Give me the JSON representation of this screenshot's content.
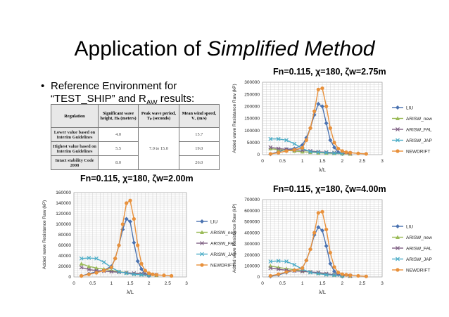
{
  "slide": {
    "title_prefix": "Application of ",
    "title_italic": "Simplified Method",
    "bullet_dot": "•",
    "bullet_text_main": "Reference Environment for “TEST_SHIP” and R",
    "bullet_text_sub": "AW",
    "bullet_text_end": " results:"
  },
  "params_table": {
    "headers": [
      "Regulation",
      "Significant wave height, Hₛ (meters)",
      "Peak wave period, Tₚ (seconds)",
      "Mean wind speed, Vᵥ (m/s)"
    ],
    "rows": [
      {
        "label": "Lower value based on Interim Guidelines",
        "height": "4.0",
        "wind": "15.7"
      },
      {
        "label": "Highest value based on Interim Guidelines",
        "height": "5.5",
        "wind": "19.0"
      },
      {
        "label": "Intact stability Code 2008",
        "height": "8.0",
        "wind": "26.0"
      }
    ],
    "period_range": "7.0 to 15.0"
  },
  "chart_data": [
    {
      "type": "line",
      "title": "Fn=0.115, χ=180, ζw=2.75m",
      "xlabel": "λ/L",
      "ylabel": "Added wave Resistance Raw (kP)",
      "xlim": [
        0,
        3
      ],
      "ylim": [
        0,
        300000
      ],
      "xticks": [
        "0",
        "0.5",
        "1",
        "1.5",
        "2",
        "2.5",
        "3"
      ],
      "yticks": [
        "0",
        "50000",
        "100000",
        "150000",
        "200000",
        "250000",
        "300000"
      ],
      "grid": true,
      "legend_position": "right",
      "series": [
        {
          "name": "LIU",
          "color": "#4a72b0",
          "marker": "diamond",
          "x": [
            0.2,
            0.4,
            0.6,
            0.8,
            1.0,
            1.1,
            1.2,
            1.3,
            1.4,
            1.5,
            1.6,
            1.7,
            1.8,
            1.9,
            2.0
          ],
          "y": [
            2000,
            12000,
            22000,
            25000,
            40000,
            70000,
            110000,
            165000,
            210000,
            200000,
            130000,
            60000,
            30000,
            10000,
            3000
          ]
        },
        {
          "name": "ARISW_new",
          "color": "#9bbb59",
          "marker": "triangle",
          "x": [
            0.2,
            0.4,
            0.6,
            0.8,
            1.0,
            1.2,
            1.4,
            1.6,
            1.8,
            2.0,
            2.2
          ],
          "y": [
            25000,
            20000,
            18000,
            15000,
            12000,
            10000,
            8000,
            6000,
            5000,
            4000,
            3000
          ]
        },
        {
          "name": "ARISW_FAL",
          "color": "#7f6084",
          "marker": "x",
          "x": [
            0.2,
            0.4,
            0.6,
            0.8,
            1.0,
            1.2,
            1.4,
            1.6,
            1.8,
            2.0,
            2.2
          ],
          "y": [
            30000,
            25000,
            22000,
            20000,
            18000,
            15000,
            12000,
            10000,
            8000,
            6000,
            5000
          ]
        },
        {
          "name": "ARISW_JAP",
          "color": "#4bacc6",
          "marker": "x",
          "x": [
            0.2,
            0.4,
            0.6,
            0.8,
            1.0,
            1.2,
            1.4,
            1.6,
            1.8,
            2.0
          ],
          "y": [
            65000,
            65000,
            60000,
            45000,
            25000,
            12000,
            10000,
            8000,
            6000,
            5000
          ]
        },
        {
          "name": "NEWDRIFT",
          "color": "#e8913c",
          "marker": "circle",
          "x": [
            0.2,
            0.4,
            0.6,
            0.8,
            1.0,
            1.1,
            1.2,
            1.3,
            1.4,
            1.5,
            1.6,
            1.7,
            1.8,
            1.9,
            2.0,
            2.1,
            2.2,
            2.4,
            2.6
          ],
          "y": [
            3000,
            8000,
            15000,
            20000,
            28000,
            60000,
            110000,
            180000,
            270000,
            275000,
            200000,
            110000,
            50000,
            25000,
            15000,
            10000,
            8000,
            5000,
            3000
          ]
        }
      ]
    },
    {
      "type": "line",
      "title": "Fn=0.115, χ=180, ζw=2.00m",
      "xlabel": "λ/L",
      "ylabel": "Added wave Resistance Raw (kP)",
      "xlim": [
        0,
        3
      ],
      "ylim": [
        0,
        160000
      ],
      "xticks": [
        "0",
        "0.5",
        "1",
        "1.5",
        "2",
        "2.5",
        "3"
      ],
      "yticks": [
        "0",
        "20000",
        "40000",
        "60000",
        "80000",
        "100000",
        "120000",
        "140000",
        "160000"
      ],
      "grid": true,
      "legend_position": "right",
      "series": [
        {
          "name": "LIU",
          "color": "#4a72b0",
          "marker": "diamond",
          "x": [
            0.2,
            0.4,
            0.6,
            0.8,
            1.0,
            1.1,
            1.2,
            1.3,
            1.4,
            1.5,
            1.6,
            1.7,
            1.8,
            1.9,
            2.0
          ],
          "y": [
            2000,
            6000,
            10000,
            13000,
            20000,
            35000,
            60000,
            90000,
            110000,
            105000,
            65000,
            30000,
            15000,
            5000,
            2000
          ]
        },
        {
          "name": "ARISW_new",
          "color": "#9bbb59",
          "marker": "triangle",
          "x": [
            0.2,
            0.4,
            0.6,
            0.8,
            1.0,
            1.2,
            1.4,
            1.6,
            1.8,
            2.0,
            2.2
          ],
          "y": [
            25000,
            20000,
            17000,
            15000,
            12000,
            10000,
            8000,
            6000,
            5000,
            4000,
            3000
          ]
        },
        {
          "name": "ARISW_FAL",
          "color": "#7f6084",
          "marker": "x",
          "x": [
            0.2,
            0.4,
            0.6,
            0.8,
            1.0,
            1.2,
            1.4,
            1.6,
            1.8,
            2.0,
            2.2
          ],
          "y": [
            18000,
            14000,
            12000,
            11000,
            10000,
            9000,
            8000,
            7000,
            6000,
            5000,
            4000
          ]
        },
        {
          "name": "ARISW_JAP",
          "color": "#4bacc6",
          "marker": "x",
          "x": [
            0.2,
            0.4,
            0.6,
            0.8,
            1.0,
            1.2,
            1.4,
            1.6,
            1.8,
            2.0
          ],
          "y": [
            35000,
            36000,
            35000,
            28000,
            18000,
            10000,
            7000,
            5000,
            4000,
            3000
          ]
        },
        {
          "name": "NEWDRIFT",
          "color": "#e8913c",
          "marker": "circle",
          "x": [
            0.2,
            0.4,
            0.6,
            0.8,
            1.0,
            1.1,
            1.2,
            1.3,
            1.4,
            1.5,
            1.6,
            1.7,
            1.8,
            1.9,
            2.0,
            2.1,
            2.2,
            2.4,
            2.6
          ],
          "y": [
            2000,
            5000,
            8000,
            12000,
            18000,
            35000,
            60000,
            100000,
            140000,
            145000,
            110000,
            60000,
            25000,
            12000,
            7000,
            5000,
            4000,
            3000,
            2000
          ]
        }
      ]
    },
    {
      "type": "line",
      "title": "Fn=0.115, χ=180, ζw=4.00m",
      "xlabel": "λ/L",
      "ylabel": "Added wave Resistance Raw (kP)",
      "xlim": [
        0,
        3
      ],
      "ylim": [
        0,
        700000
      ],
      "xticks": [
        "0",
        "0.5",
        "1",
        "1.5",
        "2",
        "2.5",
        "3"
      ],
      "yticks": [
        "0",
        "100000",
        "200000",
        "300000",
        "400000",
        "500000",
        "600000",
        "700000"
      ],
      "grid": true,
      "legend_position": "right",
      "series": [
        {
          "name": "LIU",
          "color": "#4a72b0",
          "marker": "diamond",
          "x": [
            0.2,
            0.4,
            0.6,
            0.8,
            1.0,
            1.1,
            1.2,
            1.3,
            1.4,
            1.5,
            1.6,
            1.7,
            1.8,
            1.9,
            2.0
          ],
          "y": [
            5000,
            20000,
            40000,
            60000,
            80000,
            150000,
            250000,
            380000,
            450000,
            420000,
            280000,
            120000,
            50000,
            20000,
            5000
          ]
        },
        {
          "name": "ARISW_new",
          "color": "#9bbb59",
          "marker": "triangle",
          "x": [
            0.2,
            0.4,
            0.6,
            0.8,
            1.0,
            1.2,
            1.4,
            1.6,
            1.8,
            2.0,
            2.2
          ],
          "y": [
            100000,
            85000,
            75000,
            65000,
            55000,
            45000,
            35000,
            25000,
            18000,
            12000,
            8000
          ]
        },
        {
          "name": "ARISW_FAL",
          "color": "#7f6084",
          "marker": "x",
          "x": [
            0.2,
            0.4,
            0.6,
            0.8,
            1.0,
            1.2,
            1.4,
            1.6,
            1.8,
            2.0,
            2.2
          ],
          "y": [
            80000,
            70000,
            60000,
            55000,
            50000,
            45000,
            40000,
            30000,
            20000,
            15000,
            10000
          ]
        },
        {
          "name": "ARISW_JAP",
          "color": "#4bacc6",
          "marker": "x",
          "x": [
            0.2,
            0.4,
            0.6,
            0.8,
            1.0,
            1.2,
            1.4,
            1.6,
            1.8,
            2.0
          ],
          "y": [
            140000,
            145000,
            140000,
            110000,
            70000,
            40000,
            30000,
            20000,
            15000,
            10000
          ]
        },
        {
          "name": "NEWDRIFT",
          "color": "#e8913c",
          "marker": "circle",
          "x": [
            0.2,
            0.4,
            0.6,
            0.8,
            1.0,
            1.1,
            1.2,
            1.3,
            1.4,
            1.5,
            1.6,
            1.7,
            1.8,
            1.9,
            2.0,
            2.1,
            2.2,
            2.4,
            2.6
          ],
          "y": [
            10000,
            25000,
            45000,
            60000,
            80000,
            150000,
            250000,
            400000,
            580000,
            590000,
            430000,
            220000,
            90000,
            40000,
            25000,
            20000,
            15000,
            10000,
            5000
          ]
        }
      ]
    }
  ]
}
